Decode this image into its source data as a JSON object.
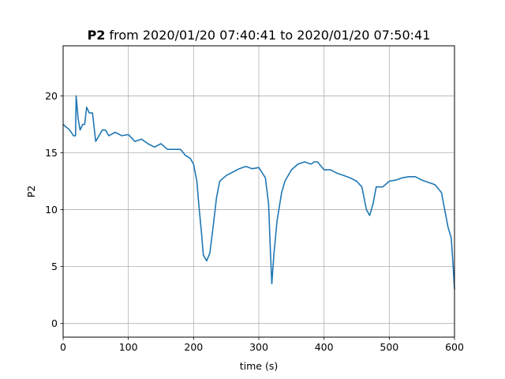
{
  "chart_data": {
    "type": "line",
    "title": {
      "bold": "P2",
      "rest": "from 2020/01/20 07:40:41 to 2020/01/20 07:50:41"
    },
    "xlabel": "time (s)",
    "ylabel": "P2",
    "xlim": [
      0,
      600
    ],
    "ylim": [
      -1.2,
      24.4
    ],
    "xticks": [
      0,
      100,
      200,
      300,
      400,
      500,
      600
    ],
    "yticks": [
      0,
      5,
      10,
      15,
      20
    ],
    "grid": true,
    "series": [
      {
        "color": "#1f77b4",
        "x": [
          0,
          10,
          16,
          19,
          20,
          23,
          26,
          30,
          33,
          36,
          40,
          45,
          50,
          55,
          60,
          65,
          70,
          80,
          90,
          100,
          110,
          120,
          130,
          140,
          150,
          160,
          170,
          180,
          187,
          195,
          200,
          205,
          208,
          212,
          215,
          220,
          225,
          230,
          235,
          240,
          250,
          260,
          270,
          280,
          290,
          300,
          310,
          315,
          318,
          320,
          323,
          328,
          335,
          340,
          350,
          360,
          370,
          380,
          385,
          390,
          400,
          410,
          420,
          430,
          440,
          450,
          458,
          465,
          470,
          475,
          480,
          490,
          500,
          510,
          520,
          530,
          540,
          550,
          560,
          570,
          580,
          585,
          590,
          595,
          598,
          600
        ],
        "y": [
          17.5,
          17.0,
          16.5,
          16.5,
          20.0,
          18.0,
          17.0,
          17.5,
          17.5,
          19.0,
          18.5,
          18.5,
          16.0,
          16.5,
          17.0,
          17.0,
          16.5,
          16.8,
          16.5,
          16.6,
          16.0,
          16.2,
          15.8,
          15.5,
          15.8,
          15.3,
          15.3,
          15.3,
          14.8,
          14.5,
          14.0,
          12.5,
          10.5,
          8.0,
          6.0,
          5.5,
          6.2,
          8.5,
          11.0,
          12.5,
          13.0,
          13.3,
          13.6,
          13.8,
          13.6,
          13.7,
          12.8,
          10.5,
          6.0,
          3.5,
          6.0,
          9.0,
          11.5,
          12.5,
          13.5,
          14.0,
          14.2,
          14.0,
          14.2,
          14.2,
          13.5,
          13.5,
          13.2,
          13.0,
          12.8,
          12.5,
          12.0,
          10.0,
          9.5,
          10.5,
          12.0,
          12.0,
          12.5,
          12.6,
          12.8,
          12.9,
          12.9,
          12.6,
          12.4,
          12.2,
          11.5,
          10.0,
          8.5,
          7.5,
          5.0,
          3.0
        ]
      }
    ]
  }
}
